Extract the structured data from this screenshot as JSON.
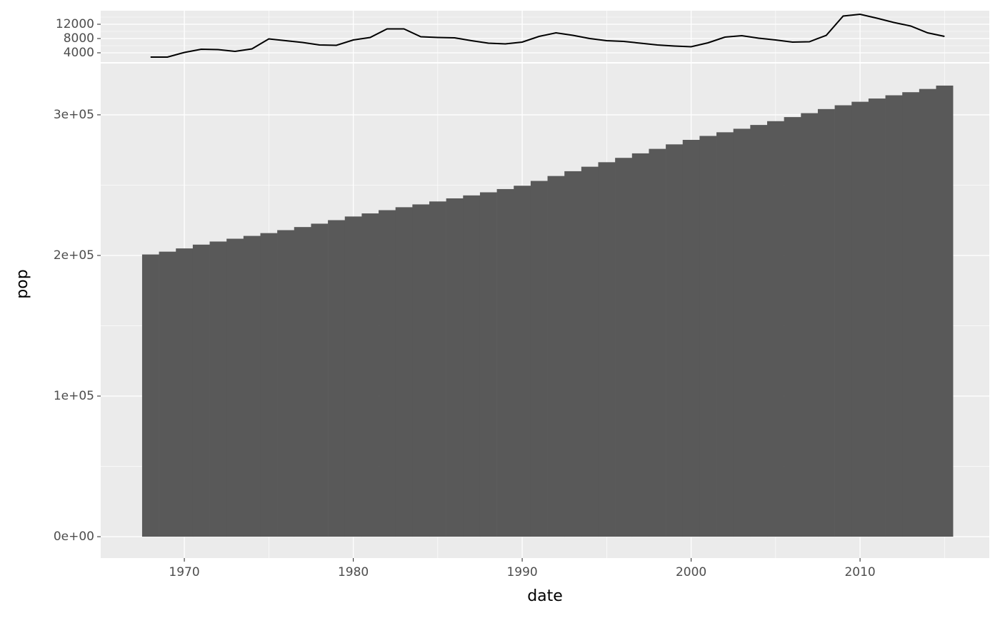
{
  "chart_data": [
    {
      "type": "line",
      "color": "#000000",
      "x": [
        1968,
        1969,
        1970,
        1971,
        1972,
        1973,
        1974,
        1975,
        1976,
        1977,
        1978,
        1979,
        1980,
        1981,
        1982,
        1983,
        1984,
        1985,
        1986,
        1987,
        1988,
        1989,
        1990,
        1991,
        1992,
        1993,
        1994,
        1995,
        1996,
        1997,
        1998,
        1999,
        2000,
        2001,
        2002,
        2003,
        2004,
        2005,
        2006,
        2007,
        2008,
        2009,
        2010,
        2011,
        2012,
        2013,
        2014,
        2015
      ],
      "values": [
        2800,
        2800,
        4100,
        5000,
        4900,
        4400,
        5100,
        7900,
        7400,
        6900,
        6200,
        6100,
        7600,
        8300,
        10700,
        10700,
        8500,
        8300,
        8200,
        7400,
        6700,
        6500,
        7000,
        8600,
        9600,
        8900,
        8000,
        7400,
        7200,
        6700,
        6200,
        5900,
        5700,
        6800,
        8400,
        8800,
        8100,
        7600,
        7000,
        7100,
        8900,
        14300,
        14800,
        13700,
        12500,
        11500,
        9600,
        8600
      ],
      "ylim": [
        1400,
        15800
      ],
      "yticks": [
        4000,
        8000,
        12000
      ],
      "minor_yticks": [
        6000,
        10000,
        14000
      ],
      "xlim": [
        1965.05,
        2017.65
      ],
      "grid": true
    },
    {
      "type": "bar",
      "color": "#595959",
      "x": [
        1968,
        1969,
        1970,
        1971,
        1972,
        1973,
        1974,
        1975,
        1976,
        1977,
        1978,
        1979,
        1980,
        1981,
        1982,
        1983,
        1984,
        1985,
        1986,
        1987,
        1988,
        1989,
        1990,
        1991,
        1992,
        1993,
        1994,
        1995,
        1996,
        1997,
        1998,
        1999,
        2000,
        2001,
        2002,
        2003,
        2004,
        2005,
        2006,
        2007,
        2008,
        2009,
        2010,
        2011,
        2012,
        2013,
        2014,
        2015
      ],
      "values": [
        200700,
        202700,
        205000,
        207700,
        209900,
        211900,
        213900,
        215900,
        218000,
        220200,
        222600,
        225100,
        227700,
        229900,
        232200,
        234300,
        236300,
        238400,
        240600,
        242700,
        244900,
        247200,
        249600,
        253000,
        256500,
        259900,
        263100,
        266300,
        269400,
        272600,
        275800,
        279000,
        282200,
        285000,
        287600,
        290100,
        292800,
        295500,
        298400,
        301200,
        304100,
        306800,
        309300,
        311600,
        313900,
        316100,
        318400,
        320800
      ],
      "ylim": [
        -15200,
        336500
      ],
      "yticks": [
        {
          "value": 0,
          "label": "0e+00"
        },
        {
          "value": 100000,
          "label": "1e+05"
        },
        {
          "value": 200000,
          "label": "2e+05"
        },
        {
          "value": 300000,
          "label": "3e+05"
        }
      ],
      "minor_yticks": [
        50000,
        150000,
        250000
      ],
      "xlim": [
        1965.05,
        2017.65
      ],
      "xticks": [
        1970,
        1980,
        1990,
        2000,
        2010
      ],
      "minor_xticks": [
        1975,
        1985,
        1995,
        2005,
        2015
      ],
      "xlabel": "date",
      "ylabel": "pop",
      "grid": true
    }
  ]
}
